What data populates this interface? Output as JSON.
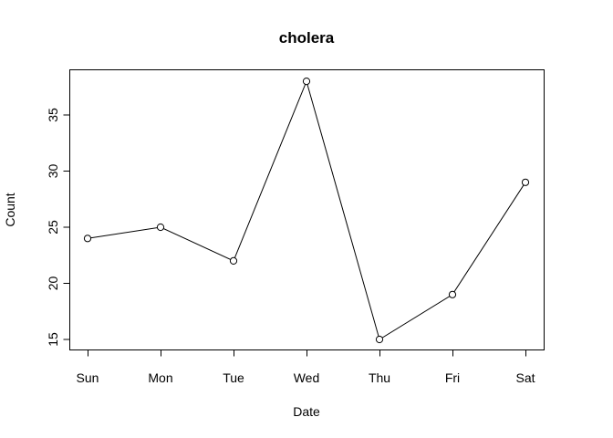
{
  "chart_data": {
    "type": "line",
    "title": "cholera",
    "xlabel": "Date",
    "ylabel": "Count",
    "categories": [
      "Sun",
      "Mon",
      "Tue",
      "Wed",
      "Thu",
      "Fri",
      "Sat"
    ],
    "values": [
      24,
      25,
      22,
      38,
      15,
      19,
      29
    ],
    "yticks": [
      15,
      20,
      25,
      30,
      35
    ],
    "ylim": [
      15,
      38
    ],
    "grid": false,
    "markers": "open-circle",
    "line_color": "#000000"
  }
}
